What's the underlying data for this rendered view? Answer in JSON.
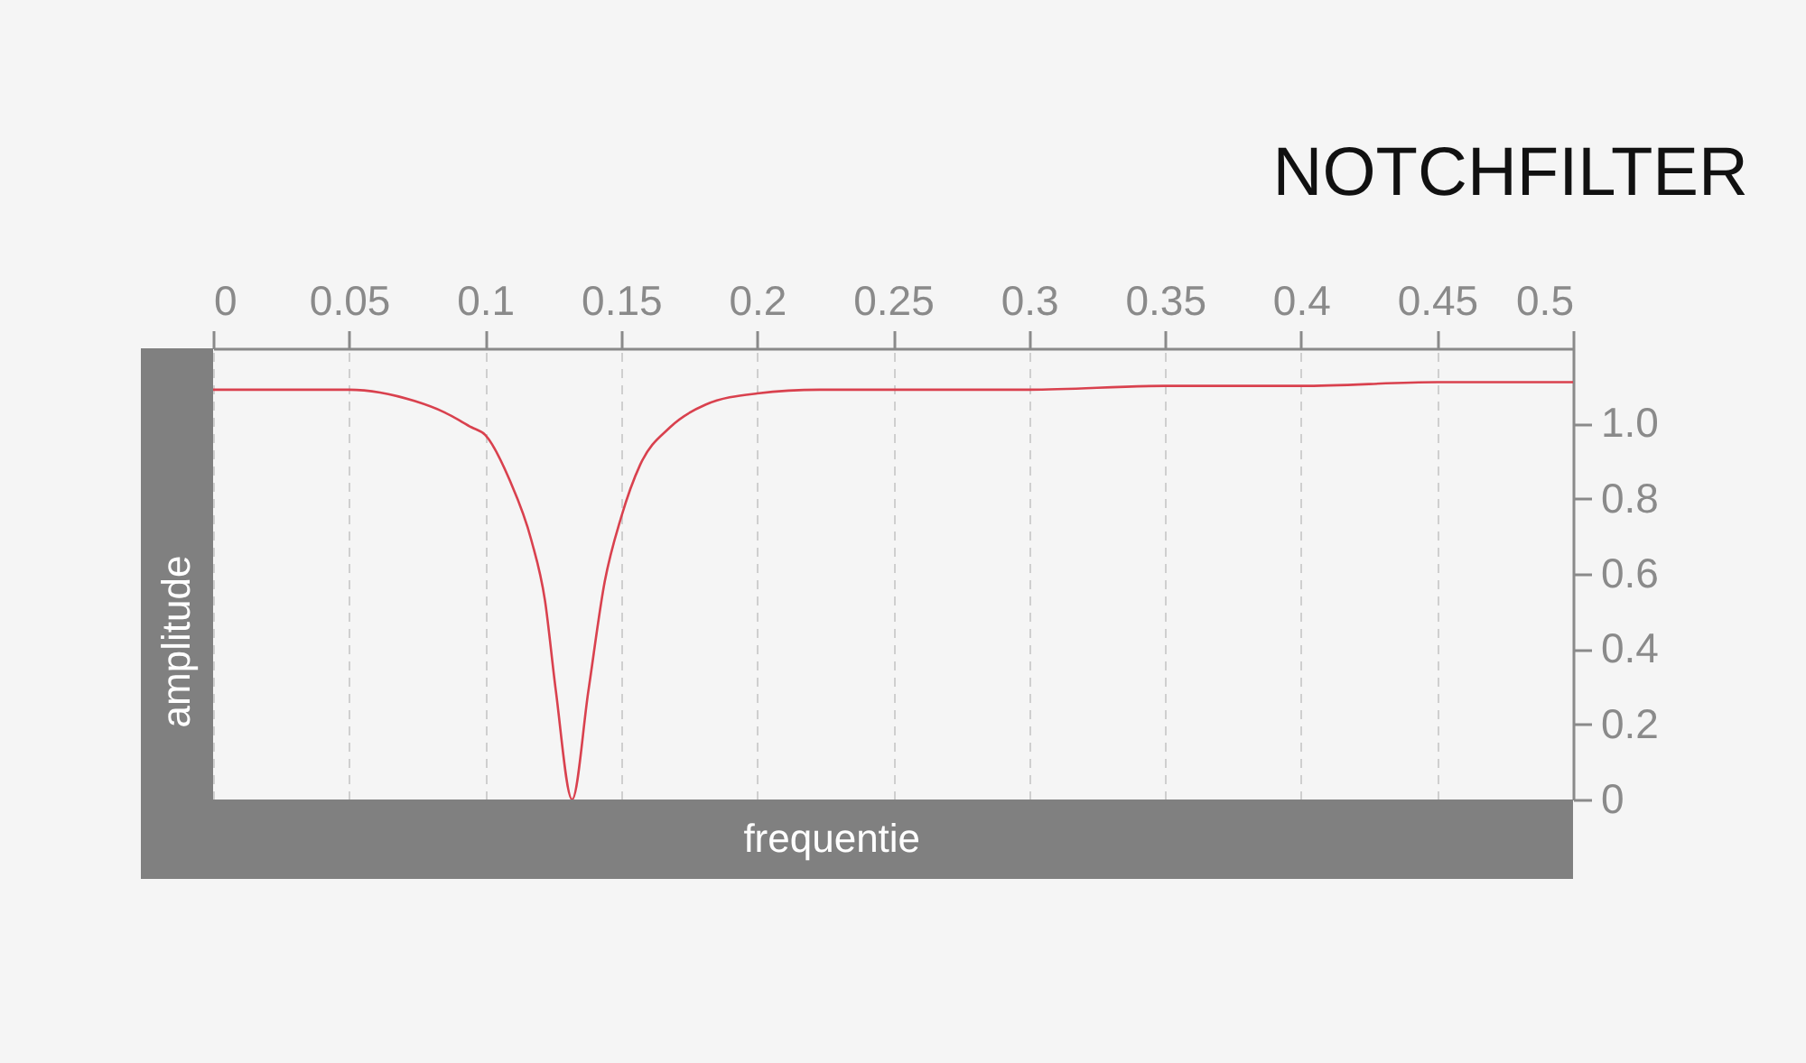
{
  "chart_data": {
    "type": "line",
    "title": "NOTCHFILTER",
    "xlabel": "frequentie",
    "ylabel": "amplitude",
    "x": [
      0,
      0.025,
      0.05,
      0.074,
      0.085,
      0.095,
      0.1,
      0.109,
      0.117,
      0.122,
      0.126,
      0.132,
      0.138,
      0.144,
      0.15,
      0.157,
      0.168,
      0.181,
      0.2,
      0.223,
      0.25,
      0.3,
      0.35,
      0.4,
      0.45,
      0.5
    ],
    "series": [
      {
        "color": "#d9414e",
        "values": [
          1.09,
          1.09,
          1.09,
          1.06,
          1.03,
          0.99,
          0.97,
          0.85,
          0.69,
          0.53,
          0.29,
          0,
          0.29,
          0.58,
          0.75,
          0.89,
          0.99,
          1.05,
          1.08,
          1.09,
          1.09,
          1.09,
          1.1,
          1.1,
          1.11,
          1.11
        ]
      }
    ],
    "xlim": [
      0,
      0.5
    ],
    "xticks": [
      0,
      0.05,
      0.1,
      0.15,
      0.2,
      0.25,
      0.3,
      0.35,
      0.4,
      0.45,
      0.5
    ],
    "ylim": [
      0,
      1.2
    ],
    "yticks": [
      0,
      0.2,
      0.4,
      0.6,
      0.8,
      {
        "value": 1,
        "label": "1.0"
      }
    ],
    "grid": "x",
    "line_style": "solid"
  }
}
